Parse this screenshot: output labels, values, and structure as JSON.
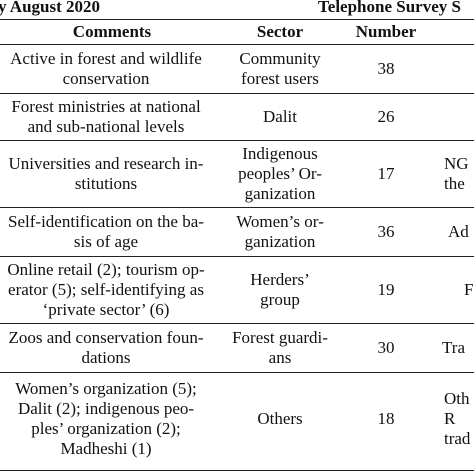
{
  "banner": {
    "left": "y August 2020",
    "right": "Telephone Survey S"
  },
  "headers": {
    "comments": "Comments",
    "sector": "Sector",
    "number": "Number"
  },
  "rows": [
    {
      "comments": "Active in forest and wildlife\nconservation",
      "sector": "Community\nforest users",
      "number": "38",
      "extra": ""
    },
    {
      "comments": "Forest ministries at national\nand sub-national levels",
      "sector": "Dalit",
      "number": "26",
      "extra": ""
    },
    {
      "comments": "Universities and research in-\nstitutions",
      "sector": "Indigenous\npeoples’ Or-\nganization",
      "number": "17",
      "extra": "NG\nthe"
    },
    {
      "comments": "Self-identification on the ba-\nsis of age",
      "sector": "Women’s or-\nganization",
      "number": "36",
      "extra": "Ad"
    },
    {
      "comments": "Online retail (2); tourism op-\nerator (5); self-identifying as\n‘private sector’ (6)",
      "sector": "Herders’\ngroup",
      "number": "19",
      "extra": "F"
    },
    {
      "comments": "Zoos and conservation foun-\ndations",
      "sector": "Forest guardi-\nans",
      "number": "30",
      "extra": "Tra"
    },
    {
      "comments": "Women’s organization (5);\nDalit (2); indigenous peo-\nples’ organization (2);\nMadheshi (1)",
      "sector": "Others",
      "number": "18",
      "extra": "Oth\nR\ntrad"
    }
  ]
}
